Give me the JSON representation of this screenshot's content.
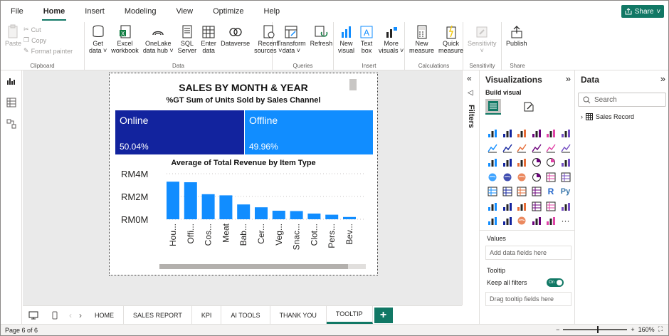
{
  "menu": {
    "tabs": [
      "File",
      "Home",
      "Insert",
      "Modeling",
      "View",
      "Optimize",
      "Help"
    ],
    "active": "Home",
    "share_label": "Share"
  },
  "ribbon": {
    "clipboard": {
      "paste": "Paste",
      "cut": "Cut",
      "copy": "Copy",
      "format_painter": "Format painter",
      "group": "Clipboard"
    },
    "data": {
      "get_data": [
        "Get",
        "data ˅"
      ],
      "excel": [
        "Excel",
        "workbook"
      ],
      "onelake": [
        "OneLake",
        "data hub ˅"
      ],
      "sql": [
        "SQL",
        "Server"
      ],
      "enter": [
        "Enter",
        "data"
      ],
      "dataverse": [
        "Dataverse",
        ""
      ],
      "recent": [
        "Recent",
        "sources ˅"
      ],
      "group": "Data"
    },
    "queries": {
      "transform": [
        "Transform",
        "data ˅"
      ],
      "refresh": [
        "Refresh",
        ""
      ],
      "group": "Queries"
    },
    "insert": {
      "new_visual": [
        "New",
        "visual"
      ],
      "text_box": [
        "Text",
        "box"
      ],
      "more_visuals": [
        "More",
        "visuals ˅"
      ],
      "group": "Insert"
    },
    "calculations": {
      "new_measure": [
        "New",
        "measure"
      ],
      "quick_measure": [
        "Quick",
        "measure"
      ],
      "group": "Calculations"
    },
    "sensitivity": {
      "label": [
        "Sensitivity",
        "˅"
      ],
      "group": "Sensitivity"
    },
    "share": {
      "publish": [
        "Publish",
        ""
      ],
      "group": "Share"
    }
  },
  "report": {
    "title": "SALES BY MONTH & YEAR",
    "subtitle": "%GT Sum of Units Sold by Sales Channel",
    "cards": [
      {
        "name": "Online",
        "value": "50.04%",
        "color": "#12239E"
      },
      {
        "name": "Offline",
        "value": "49.96%",
        "color": "#118DFF"
      }
    ]
  },
  "chart_data": {
    "type": "bar",
    "title": "Average of Total Revenue by Item Type",
    "categories": [
      "Hou...",
      "Offi...",
      "Cos...",
      "Meat",
      "Bab...",
      "Cer...",
      "Veg...",
      "Snac...",
      "Clot...",
      "Pers...",
      "Bev..."
    ],
    "values": [
      3.3,
      3.25,
      2.2,
      2.1,
      1.3,
      1.05,
      0.75,
      0.72,
      0.5,
      0.4,
      0.2
    ],
    "unit": "RM M",
    "yticks": [
      "RM4M",
      "RM2M",
      "RM0M"
    ],
    "ylim": [
      0,
      4
    ],
    "color": "#118DFF",
    "grid": true
  },
  "pages": {
    "tabs": [
      "HOME",
      "SALES REPORT",
      "KPI",
      "AI TOOLS",
      "THANK YOU",
      "TOOLTIP"
    ],
    "active": "TOOLTIP",
    "add": "+"
  },
  "status": {
    "page": "Page 6 of 6",
    "zoom": "160%"
  },
  "filters": {
    "label": "Filters"
  },
  "viz_pane": {
    "title": "Visualizations",
    "build": "Build visual",
    "values_label": "Values",
    "values_placeholder": "Add data fields here",
    "tooltip_label": "Tooltip",
    "keep_filters": "Keep all filters",
    "toggle": "On",
    "tooltip_placeholder": "Drag tooltip fields here",
    "icons": [
      "stacked-bar",
      "stacked-column",
      "clustered-bar",
      "clustered-column",
      "100-bar",
      "100-column",
      "line",
      "area",
      "stacked-area",
      "line-column",
      "line-clustered",
      "ribbon",
      "waterfall",
      "funnel",
      "scatter",
      "pie",
      "donut",
      "treemap",
      "map",
      "filled-map",
      "azure-map",
      "gauge",
      "card",
      "multi-row-card",
      "kpi",
      "slicer",
      "table",
      "matrix",
      "r-visual",
      "python-visual",
      "key-influencers",
      "decomp-tree",
      "qa",
      "narrative",
      "paginated",
      "metrics",
      "powerapps",
      "power-automate",
      "arcgis",
      "custom-visual",
      "chevron-visual",
      "more"
    ]
  },
  "data_pane": {
    "title": "Data",
    "search": "Search",
    "table": "Sales Record"
  }
}
